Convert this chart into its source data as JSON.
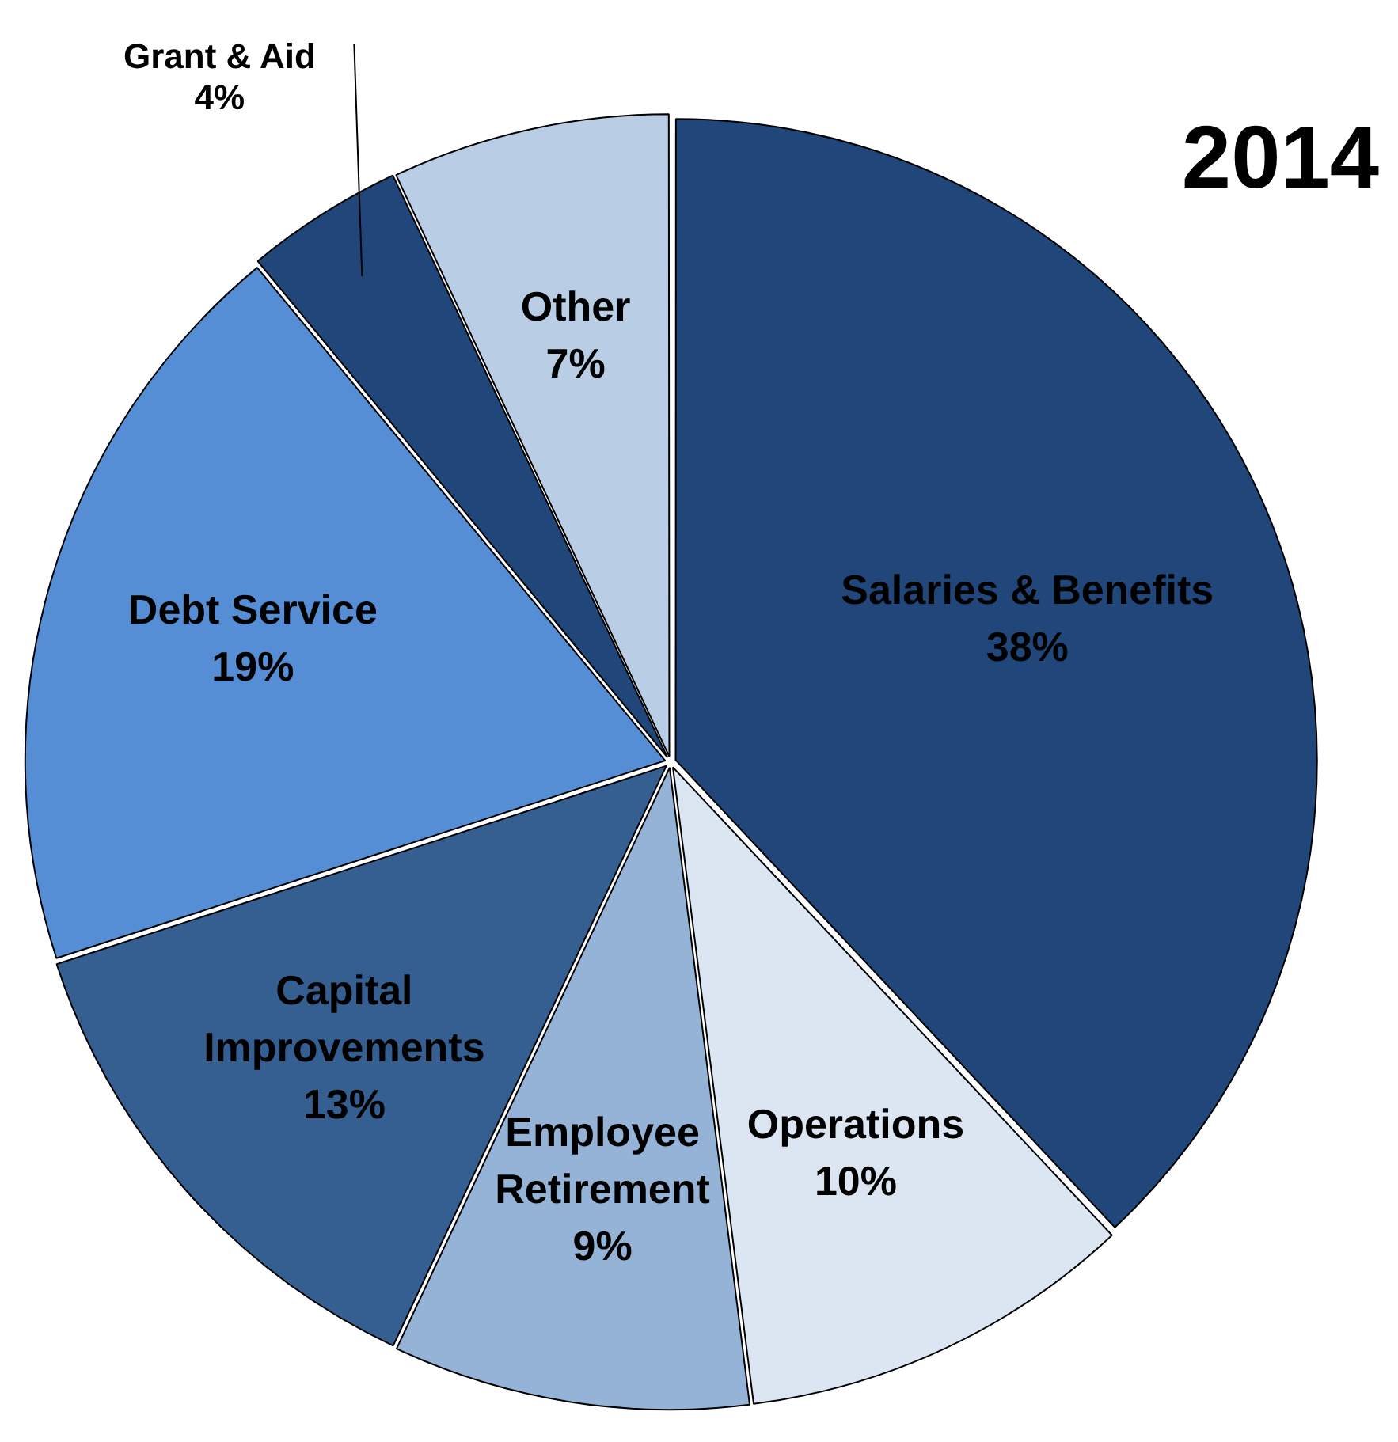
{
  "chart_data": {
    "type": "pie",
    "title": "2014",
    "categories": [
      "Salaries & Benefits",
      "Operations",
      "Employee Retirement",
      "Capital Improvements",
      "Debt Service",
      "Grant & Aid",
      "Other"
    ],
    "values": [
      38,
      10,
      9,
      13,
      19,
      4,
      7
    ],
    "value_labels": [
      "38%",
      "10%",
      "9%",
      "13%",
      "19%",
      "4%",
      "7%"
    ],
    "colors": [
      "#21477a",
      "#dce6f2",
      "#95b3d7",
      "#355f91",
      "#558ed5",
      "#21477a",
      "#b9cde5"
    ],
    "legend": false
  }
}
